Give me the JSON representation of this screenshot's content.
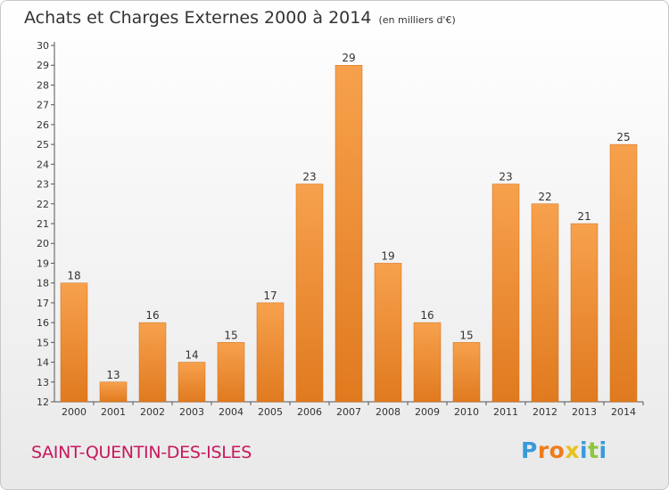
{
  "title": "Achats et Charges Externes 2000 à 2014",
  "subtitle": "(en milliers d'€)",
  "commune": "SAINT-QUENTIN-DES-ISLES",
  "logo": {
    "letters": [
      "P",
      "r",
      "o",
      "x",
      "i",
      "t",
      "i"
    ],
    "colors": [
      "#3a9ad9",
      "#f07c1b",
      "#f07c1b",
      "#e8c21a",
      "#3a9ad9",
      "#8cc63f",
      "#3a9ad9"
    ]
  },
  "colors": {
    "bar_light": "#f7a14d",
    "bar_dark": "#e07a1f",
    "axis": "#555555",
    "grid": "#aaaaaa"
  },
  "chart_data": {
    "type": "bar",
    "categories": [
      "2000",
      "2001",
      "2002",
      "2003",
      "2004",
      "2005",
      "2006",
      "2007",
      "2008",
      "2009",
      "2010",
      "2011",
      "2012",
      "2013",
      "2014"
    ],
    "values": [
      18,
      13,
      16,
      14,
      15,
      17,
      23,
      29,
      19,
      16,
      15,
      23,
      22,
      21,
      25
    ],
    "ylim": [
      12,
      30
    ],
    "yticks": [
      12,
      13,
      14,
      15,
      16,
      17,
      18,
      19,
      20,
      21,
      22,
      23,
      24,
      25,
      26,
      27,
      28,
      29,
      30
    ],
    "xlabel": "",
    "ylabel": "",
    "grid": false
  }
}
